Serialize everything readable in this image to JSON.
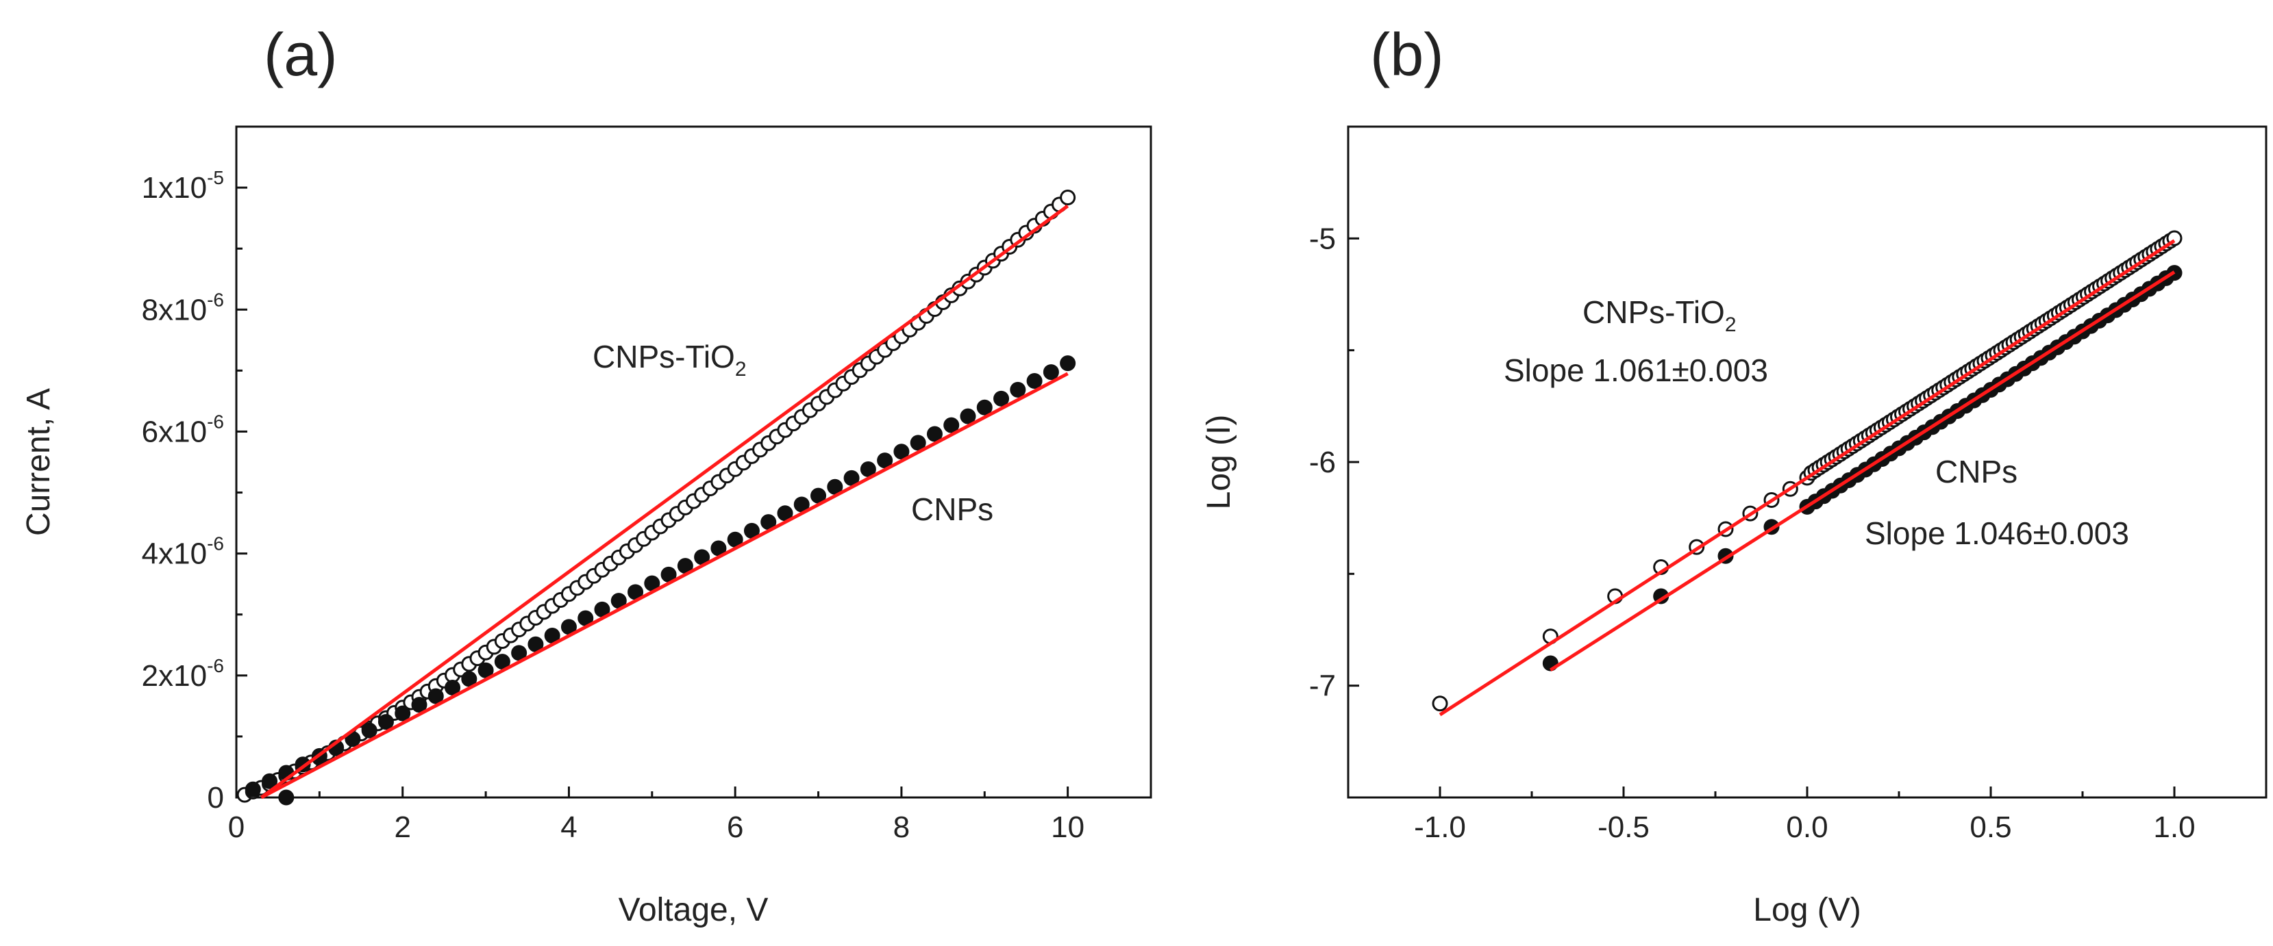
{
  "colors": {
    "fit": "#ff1a1a",
    "marker": "#111111",
    "axis": "#111111"
  },
  "chart_data": [
    {
      "panel": "(a)",
      "type": "scatter",
      "xlabel": "Voltage, V",
      "ylabel": "Current, A",
      "xlim": [
        0,
        11
      ],
      "ylim": [
        0,
        1.1e-05
      ],
      "xticks": [
        0,
        2,
        4,
        6,
        8,
        10
      ],
      "xtick_labels": [
        "0",
        "2",
        "4",
        "6",
        "8",
        "10"
      ],
      "yticks": [
        0,
        2e-06,
        4e-06,
        6e-06,
        8e-06,
        1e-05
      ],
      "ytick_labels": [
        {
          "base": "0",
          "exp": ""
        },
        {
          "base": "2x10",
          "exp": "-6"
        },
        {
          "base": "4x10",
          "exp": "-6"
        },
        {
          "base": "6x10",
          "exp": "-6"
        },
        {
          "base": "8x10",
          "exp": "-6"
        },
        {
          "base": "1x10",
          "exp": "-5"
        }
      ],
      "series": [
        {
          "name": "CNPs-TiO2",
          "label_main": "CNPs-TiO",
          "label_sub": "2",
          "marker": "open-circle",
          "x_range": [
            0.1,
            10.0
          ],
          "n_points": 100,
          "model": {
            "coef": 6.5e-07,
            "power": 1.18
          },
          "fit": {
            "x": [
              0.3,
              10.0
            ],
            "y": [
              0.0,
              9.7e-06
            ]
          }
        },
        {
          "name": "CNPs",
          "label_main": "CNPs",
          "marker": "filled-circle",
          "x_range": [
            0.2,
            10.0
          ],
          "n_points": 50,
          "model": {
            "coef": 6.8e-07,
            "power": 1.02
          },
          "fit": {
            "x": [
              0.3,
              10.0
            ],
            "y": [
              0.0,
              6.95e-06
            ]
          },
          "outlier": {
            "x": 0.6,
            "y": 0.0
          }
        }
      ]
    },
    {
      "panel": "(b)",
      "type": "scatter",
      "xlabel": "Log (V)",
      "ylabel": "Log (I)",
      "xlim": [
        -1.25,
        1.25
      ],
      "ylim": [
        -7.5,
        -4.5
      ],
      "xticks": [
        -1.0,
        -0.5,
        0.0,
        0.5,
        1.0
      ],
      "xtick_labels": [
        "-1.0",
        "-0.5",
        "0.0",
        "0.5",
        "1.0"
      ],
      "yticks": [
        -7,
        -6,
        -5
      ],
      "ytick_labels": [
        "-7",
        "-6",
        "-5"
      ],
      "series": [
        {
          "name": "CNPs-TiO2",
          "label_main": "CNPs-TiO",
          "label_sub": "2",
          "slope_text": "Slope 1.061±0.003",
          "marker": "open-circle",
          "x_values": [
            -1.0,
            -0.699,
            -0.523,
            -0.398,
            -0.301,
            -0.222,
            -0.155,
            -0.097,
            -0.046,
            0.0
          ],
          "y_values": [
            -7.08,
            -6.78,
            -6.6,
            -6.47,
            -6.38,
            -6.3,
            -6.23,
            -6.17,
            -6.12,
            -6.07
          ],
          "dense_x_range": [
            0.0,
            1.0
          ],
          "dense_line": {
            "slope": 1.061,
            "intercept": -6.06
          },
          "dense_n": 90,
          "fit": {
            "x": [
              -1.0,
              1.0
            ],
            "y": [
              -7.13,
              -5.01
            ]
          }
        },
        {
          "name": "CNPs",
          "label_main": "CNPs",
          "slope_text": "Slope 1.046±0.003",
          "marker": "filled-circle",
          "x_values": [
            -0.699,
            -0.398,
            -0.222,
            -0.097,
            0.0
          ],
          "y_values": [
            -6.9,
            -6.6,
            -6.42,
            -6.29,
            -6.2
          ],
          "dense_x_range": [
            0.0,
            1.0
          ],
          "dense_line": {
            "slope": 1.046,
            "intercept": -6.2
          },
          "dense_n": 45,
          "fit": {
            "x": [
              -0.699,
              1.0
            ],
            "y": [
              -6.93,
              -5.15
            ]
          }
        }
      ]
    }
  ]
}
